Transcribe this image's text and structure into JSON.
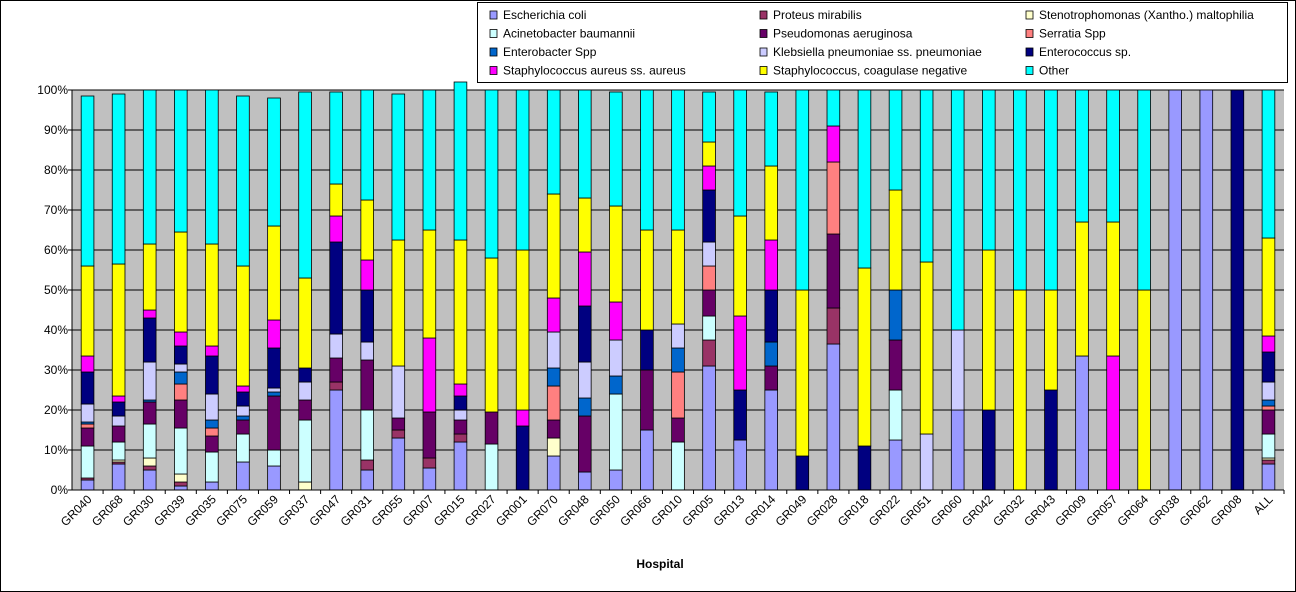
{
  "colors": {
    "page_border": "#000000",
    "plot_background": "#c0c0c0",
    "page_background": "#ffffff"
  },
  "chart_data": {
    "type": "bar",
    "stacked": true,
    "percent_stacked": true,
    "xlabel": "Hospital",
    "ylabel": "",
    "ylim": [
      0,
      100
    ],
    "y_tick_labels": [
      "0%",
      "10%",
      "20%",
      "30%",
      "40%",
      "50%",
      "60%",
      "70%",
      "80%",
      "90%",
      "100%"
    ],
    "grid": true,
    "legend_position": "top-right",
    "categories": [
      "GR040",
      "GR068",
      "GR030",
      "GR039",
      "GR035",
      "GR075",
      "GR059",
      "GR037",
      "GR047",
      "GR031",
      "GR055",
      "GR007",
      "GR015",
      "GR027",
      "GR001",
      "GR070",
      "GR048",
      "GR050",
      "GR066",
      "GR010",
      "GR005",
      "GR013",
      "GR014",
      "GR049",
      "GR028",
      "GR018",
      "GR022",
      "GR051",
      "GR060",
      "GR042",
      "GR032",
      "GR043",
      "GR009",
      "GR057",
      "GR064",
      "GR038",
      "GR062",
      "GR008",
      "ALL"
    ],
    "series": [
      {
        "name": "Escherichia coli",
        "color": "#9999ff",
        "values": [
          2.5,
          6.5,
          5,
          1,
          2,
          7,
          6,
          0,
          25,
          5,
          13,
          5.5,
          12,
          0,
          0,
          8.5,
          4.5,
          5,
          15,
          0,
          31,
          12.5,
          25,
          0,
          36.5,
          0,
          12.5,
          0,
          20,
          0,
          0,
          0,
          33.5,
          0,
          0,
          100,
          100,
          0,
          6.5
        ]
      },
      {
        "name": "Proteus mirabilis",
        "color": "#993366",
        "values": [
          0.5,
          0.5,
          1,
          1,
          0,
          0,
          0,
          0,
          2,
          2.5,
          2,
          2.5,
          2,
          0,
          0,
          0,
          0,
          0,
          0,
          0,
          6.5,
          0,
          0,
          0,
          9,
          0,
          0,
          0,
          0,
          0,
          0,
          0,
          0,
          0,
          0,
          0,
          0,
          0,
          1
        ]
      },
      {
        "name": "Stenotrophomonas (Xantho.) maltophilia",
        "color": "#ffffcc",
        "values": [
          0,
          0.5,
          2,
          2,
          0,
          0,
          0,
          2,
          0,
          0,
          0,
          0,
          0,
          0,
          0,
          4.5,
          0,
          0,
          0,
          0,
          0,
          0,
          0,
          0,
          0,
          0,
          0,
          0,
          0,
          0,
          0,
          0,
          0,
          0,
          0,
          0,
          0,
          0,
          0.5
        ]
      },
      {
        "name": "Acinetobacter baumannii",
        "color": "#ccffff",
        "values": [
          8,
          4.5,
          8.5,
          11.5,
          7.5,
          7,
          4,
          15.5,
          0,
          12.5,
          0,
          0,
          0,
          11.5,
          0,
          0,
          0,
          19,
          0,
          12,
          6,
          0,
          0,
          0,
          0,
          0,
          12.5,
          0,
          0,
          0,
          0,
          0,
          0,
          0,
          0,
          0,
          0,
          0,
          6
        ]
      },
      {
        "name": "Pseudomonas aeruginosa",
        "color": "#660066",
        "values": [
          4.5,
          4,
          5.5,
          7,
          4,
          3.5,
          13.5,
          5,
          6,
          12.5,
          3,
          11.5,
          3.5,
          8,
          0,
          4.5,
          14,
          0,
          15,
          6,
          6.5,
          0,
          6,
          0,
          18.5,
          0,
          12.5,
          0,
          0,
          0,
          0,
          0,
          0,
          0,
          0,
          0,
          0,
          0,
          6
        ]
      },
      {
        "name": "Serratia Spp",
        "color": "#ff8080",
        "values": [
          1,
          0,
          0,
          4,
          2,
          0,
          0,
          0,
          0,
          0,
          0,
          0,
          0,
          0,
          0,
          8.5,
          0,
          0,
          0,
          11.5,
          6,
          0,
          0,
          0,
          18,
          0,
          0,
          0,
          0,
          0,
          0,
          0,
          0,
          0,
          0,
          0,
          0,
          0,
          1
        ]
      },
      {
        "name": "Enterobacter Spp",
        "color": "#0066cc",
        "values": [
          0.5,
          0,
          0.5,
          3,
          2,
          1,
          1,
          0,
          0,
          0,
          0,
          0,
          0,
          0,
          0,
          4.5,
          4.5,
          4.5,
          0,
          6,
          0,
          0,
          6,
          0,
          0,
          0,
          12.5,
          0,
          0,
          0,
          0,
          0,
          0,
          0,
          0,
          0,
          0,
          0,
          1.5
        ]
      },
      {
        "name": "Klebsiella pneumoniae ss. pneumoniae",
        "color": "#ccccff",
        "values": [
          4.5,
          2.5,
          9.5,
          2,
          6.5,
          2.5,
          1,
          4.5,
          6,
          4.5,
          13,
          0,
          2.5,
          0,
          0,
          9,
          9,
          9,
          0,
          6,
          6,
          0,
          0,
          0,
          0,
          0,
          0,
          14,
          20,
          0,
          0,
          0,
          0,
          0,
          0,
          0,
          0,
          0,
          4.5
        ]
      },
      {
        "name": "Enterococcus sp.",
        "color": "#000080",
        "values": [
          8,
          3.5,
          11,
          4.5,
          9.5,
          3.5,
          10,
          3.5,
          23,
          13,
          0,
          0,
          3.5,
          0,
          16,
          0,
          14,
          0,
          10,
          0,
          13,
          12.5,
          13,
          8.5,
          0,
          11,
          0,
          0,
          0,
          20,
          0,
          25,
          0,
          0,
          0,
          0,
          0,
          100,
          7.5
        ]
      },
      {
        "name": "Staphylococcus aureus ss. aureus",
        "color": "#ff00ff",
        "values": [
          4,
          1.5,
          2,
          3.5,
          2.5,
          1.5,
          7,
          0,
          6.5,
          7.5,
          0,
          18.5,
          3,
          0,
          4,
          8.5,
          13.5,
          9.5,
          0,
          0,
          6,
          18.5,
          12.5,
          0,
          9,
          0,
          0,
          0,
          0,
          0,
          0,
          0,
          0,
          33.5,
          0,
          0,
          0,
          0,
          4
        ]
      },
      {
        "name": "Staphylococcus, coagulase negative",
        "color": "#ffff00",
        "values": [
          22.5,
          33,
          16.5,
          25,
          25.5,
          30,
          23.5,
          22.5,
          8,
          15,
          31.5,
          27,
          36,
          38.5,
          40,
          26,
          13.5,
          24,
          25,
          23.5,
          6,
          25,
          18.5,
          41.5,
          0,
          44.5,
          25,
          43,
          0,
          40,
          50,
          25,
          33.5,
          33.5,
          50,
          0,
          0,
          0,
          24.5
        ]
      },
      {
        "name": "Other",
        "color": "#00ffff",
        "values": [
          42.5,
          42.5,
          38.5,
          35.5,
          38.5,
          42.5,
          32,
          46.5,
          23,
          27.5,
          36.5,
          35,
          39.5,
          42,
          40,
          26,
          27,
          28.5,
          35,
          35,
          12.5,
          31.5,
          18.5,
          50,
          9,
          44.5,
          25,
          43,
          60,
          40,
          50,
          50,
          33,
          33,
          50,
          0,
          0,
          0,
          37
        ]
      }
    ]
  }
}
